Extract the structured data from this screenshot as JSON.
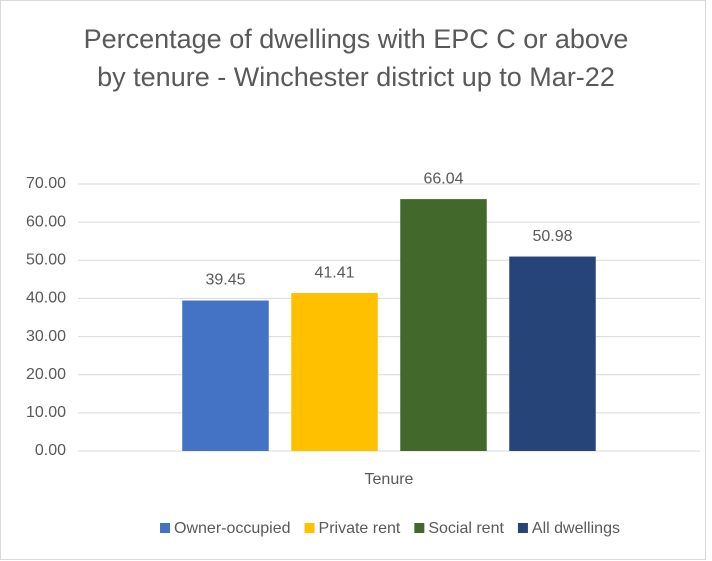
{
  "chart_data": {
    "type": "bar",
    "title": "Percentage of dwellings with EPC C or above by tenure - Winchester district up to Mar-22",
    "x_label": "Tenure",
    "categories": [
      "Tenure"
    ],
    "series": [
      {
        "name": "Owner-occupied",
        "color": "#4472c4",
        "values": [
          39.45
        ]
      },
      {
        "name": "Private rent",
        "color": "#ffc000",
        "values": [
          41.41
        ]
      },
      {
        "name": "Social rent",
        "color": "#43682b",
        "values": [
          66.04
        ]
      },
      {
        "name": "All dwellings",
        "color": "#264478",
        "values": [
          50.98
        ]
      }
    ],
    "ylim": [
      0,
      70
    ],
    "yticks": [
      {
        "value": 0,
        "label": "0.00"
      },
      {
        "value": 10,
        "label": "10.00"
      },
      {
        "value": 20,
        "label": "20.00"
      },
      {
        "value": 30,
        "label": "30.00"
      },
      {
        "value": 40,
        "label": "40.00"
      },
      {
        "value": 50,
        "label": "50.00"
      },
      {
        "value": 60,
        "label": "60.00"
      },
      {
        "value": 70,
        "label": "70.00"
      }
    ],
    "grid": true,
    "legend": "bottom"
  }
}
